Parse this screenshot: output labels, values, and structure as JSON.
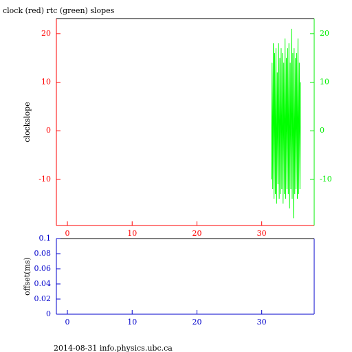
{
  "chart_data": [
    {
      "type": "line",
      "title": "clock (red) rtc (green) slopes",
      "ylabel": "clockslope",
      "xlim": [
        -1.7,
        38.1
      ],
      "xticks": [
        0,
        10,
        20,
        30
      ],
      "xtick_color": "#ff0000",
      "ylim": [
        -19.5,
        23.1
      ],
      "yticks": [
        -10,
        0,
        10,
        20
      ],
      "ytick_color": "#ff0000",
      "y2lim": [
        -19.5,
        23.1
      ],
      "y2ticks": [
        -10,
        0,
        10,
        20
      ],
      "y2tick_color": "#00ee00",
      "x": [
        31.5,
        31.6,
        31.7,
        31.8,
        31.9,
        32.0,
        32.1,
        32.2,
        32.3,
        32.4,
        32.5,
        32.6,
        32.7,
        32.8,
        32.9,
        33.0,
        33.1,
        33.2,
        33.3,
        33.4,
        33.5,
        33.6,
        33.7,
        33.8,
        33.9,
        34.0,
        34.1,
        34.2,
        34.3,
        34.4,
        34.5,
        34.6,
        34.7,
        34.8,
        34.9,
        35.0,
        35.1,
        35.2,
        35.3,
        35.4,
        35.5,
        35.6,
        35.7,
        35.8,
        35.9,
        36.0
      ],
      "series": [
        {
          "color": "#00ff00",
          "axis": "y2",
          "values": [
            -10,
            14,
            -12,
            18,
            -14,
            16,
            -13,
            17,
            -15,
            12,
            -11,
            18,
            -14,
            15,
            -13,
            17,
            -12,
            16,
            -15,
            14,
            -13,
            19,
            -14,
            15,
            -12,
            17,
            -13,
            18,
            -16,
            14,
            -12,
            21,
            -14,
            16,
            -18,
            17,
            -13,
            15,
            -12,
            16,
            -14,
            19,
            -13,
            14,
            -12,
            10
          ]
        }
      ]
    },
    {
      "type": "line",
      "ylabel": "offset(ms)",
      "xlim": [
        -1.7,
        38.1
      ],
      "xticks": [
        0,
        10,
        20,
        30
      ],
      "xtick_color": "#0000cc",
      "ylim": [
        0,
        0.1
      ],
      "yticks": [
        0,
        0.02,
        0.04,
        0.06,
        0.08,
        0.1
      ],
      "ytick_color": "#0000cc",
      "series": []
    }
  ],
  "footer": "2014-08-31 info.physics.ubc.ca"
}
